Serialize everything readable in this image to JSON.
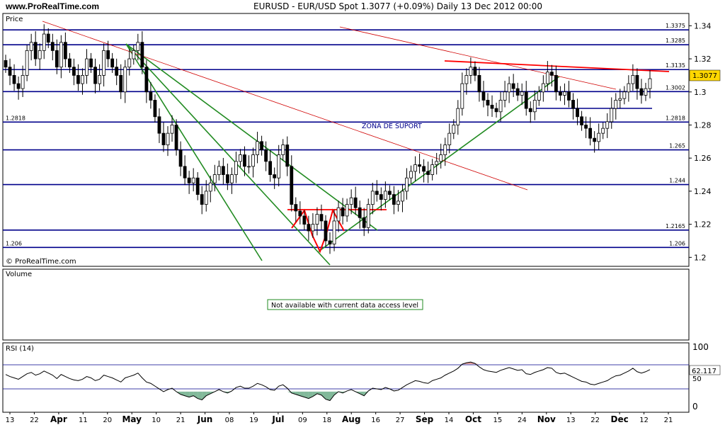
{
  "header": {
    "site": "www.ProRealTime.com",
    "title": "EURUSD - EUR/USD Spot    1.3077 (+0.09%)    Daily  13 Dec 2012 00:00"
  },
  "price_panel": {
    "label": "Price",
    "watermark": "© ProRealTime.com",
    "annotation": "ZONA DE SUPORT",
    "last_price": "1.3077"
  },
  "volume_panel": {
    "label": "Volume",
    "message": "Not available with current data access level"
  },
  "rsi_panel": {
    "label": "RSI (14)",
    "last_value": "62.117",
    "axis_ticks": [
      "100",
      "50",
      "0"
    ]
  },
  "x_axis_labels": [
    "13",
    "22",
    "Apr",
    "11",
    "20",
    "May",
    "10",
    "21",
    "Jun",
    "08",
    "19",
    "Jul",
    "09",
    "18",
    "Aug",
    "16",
    "27",
    "Sep",
    "14",
    "Oct",
    "15",
    "24",
    "Nov",
    "13",
    "22",
    "Dec",
    "12",
    "21"
  ],
  "chart_data": {
    "type": "candlestick",
    "instrument": "EURUSD",
    "timeframe": "Daily",
    "date": "13 Dec 2012",
    "last": 1.3077,
    "change_pct": "+0.09%",
    "y_ticks": [
      1.2,
      1.22,
      1.24,
      1.26,
      1.28,
      1.3,
      1.32,
      1.34
    ],
    "ylim": [
      1.195,
      1.347
    ],
    "horizontal_levels": [
      {
        "value": 1.3375,
        "label": "1.3375"
      },
      {
        "value": 1.3285,
        "label": "1.3285"
      },
      {
        "value": 1.3135,
        "label": "1.3135"
      },
      {
        "value": 1.3002,
        "label": "1.3002"
      },
      {
        "value": 1.2818,
        "label": "1.2818"
      },
      {
        "value": 1.265,
        "label": "1.265"
      },
      {
        "value": 1.244,
        "label": "1.244"
      },
      {
        "value": 1.2165,
        "label": "1.2165"
      },
      {
        "value": 1.206,
        "label": "1.206"
      }
    ],
    "close_series": [
      1.315,
      1.31,
      1.305,
      1.302,
      1.31,
      1.325,
      1.33,
      1.32,
      1.325,
      1.335,
      1.33,
      1.325,
      1.315,
      1.33,
      1.32,
      1.315,
      1.31,
      1.305,
      1.31,
      1.32,
      1.315,
      1.305,
      1.31,
      1.325,
      1.32,
      1.315,
      1.31,
      1.3,
      1.315,
      1.32,
      1.325,
      1.33,
      1.315,
      1.3,
      1.295,
      1.285,
      1.275,
      1.268,
      1.275,
      1.28,
      1.265,
      1.255,
      1.248,
      1.245,
      1.248,
      1.238,
      1.232,
      1.24,
      1.245,
      1.25,
      1.255,
      1.25,
      1.245,
      1.25,
      1.258,
      1.262,
      1.255,
      1.255,
      1.262,
      1.27,
      1.265,
      1.258,
      1.25,
      1.248,
      1.262,
      1.268,
      1.255,
      1.232,
      1.228,
      1.225,
      1.22,
      1.216,
      1.22,
      1.226,
      1.222,
      1.21,
      1.208,
      1.222,
      1.23,
      1.225,
      1.232,
      1.236,
      1.23,
      1.224,
      1.218,
      1.232,
      1.24,
      1.238,
      1.235,
      1.24,
      1.238,
      1.232,
      1.234,
      1.24,
      1.248,
      1.252,
      1.256,
      1.255,
      1.252,
      1.25,
      1.256,
      1.258,
      1.262,
      1.268,
      1.275,
      1.28,
      1.29,
      1.305,
      1.31,
      1.315,
      1.31,
      1.3,
      1.295,
      1.292,
      1.29,
      1.288,
      1.295,
      1.3,
      1.305,
      1.302,
      1.298,
      1.3,
      1.29,
      1.288,
      1.295,
      1.3,
      1.305,
      1.312,
      1.31,
      1.3,
      1.298,
      1.3,
      1.295,
      1.29,
      1.285,
      1.28,
      1.278,
      1.272,
      1.27,
      1.275,
      1.278,
      1.282,
      1.29,
      1.295,
      1.296,
      1.3,
      1.305,
      1.31,
      1.302,
      1.298,
      1.302,
      1.308
    ]
  },
  "rsi_data": {
    "range": [
      0,
      100
    ],
    "levels": [
      70,
      30
    ],
    "values": [
      55,
      52,
      50,
      48,
      52,
      56,
      58,
      54,
      56,
      60,
      57,
      54,
      49,
      55,
      52,
      49,
      47,
      46,
      48,
      52,
      50,
      46,
      48,
      54,
      52,
      50,
      47,
      44,
      50,
      52,
      54,
      57,
      50,
      44,
      42,
      38,
      34,
      30,
      33,
      35,
      30,
      26,
      24,
      22,
      24,
      20,
      18,
      24,
      27,
      30,
      33,
      30,
      28,
      31,
      36,
      38,
      35,
      35,
      38,
      42,
      40,
      37,
      33,
      32,
      38,
      40,
      35,
      28,
      26,
      24,
      22,
      20,
      23,
      27,
      25,
      19,
      17,
      25,
      30,
      28,
      31,
      33,
      30,
      27,
      24,
      31,
      35,
      34,
      33,
      36,
      34,
      31,
      32,
      36,
      40,
      43,
      46,
      45,
      43,
      42,
      46,
      48,
      50,
      54,
      57,
      60,
      64,
      70,
      72,
      73,
      71,
      66,
      62,
      60,
      59,
      58,
      61,
      63,
      65,
      63,
      61,
      62,
      56,
      55,
      58,
      60,
      62,
      65,
      64,
      58,
      56,
      57,
      54,
      51,
      48,
      45,
      44,
      41,
      40,
      42,
      44,
      46,
      50,
      53,
      54,
      57,
      60,
      64,
      59,
      57,
      59,
      62
    ]
  },
  "colors": {
    "level_line": "#00008b",
    "green_trend": "#228b22",
    "red_trend": "#ff0000",
    "red_thin": "#d00000",
    "candle": "#000000",
    "rsi_line": "#000000",
    "rsi_fill_under": "#2e8b57",
    "rsi_fill_over": "#cd5c5c",
    "last_price_badge": "#ffd700",
    "panel_border": "#000000",
    "notice_border": "#228b22"
  }
}
